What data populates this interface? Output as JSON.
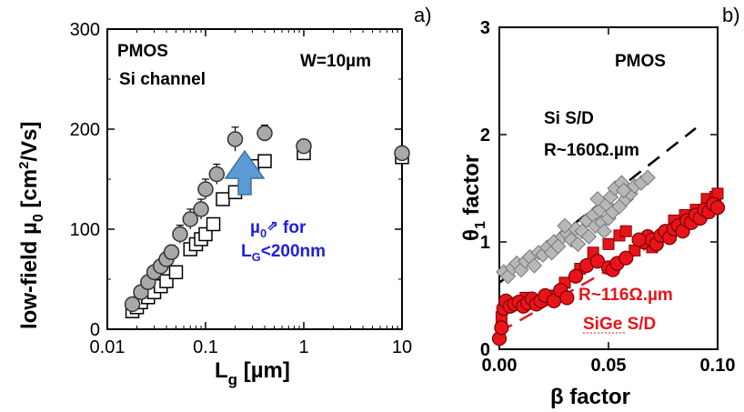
{
  "chart_data": [
    {
      "type": "scatter",
      "panel_label": "a)",
      "xlabel_main": "L",
      "xlabel_sub": "g",
      "xlabel_rest": " [µm]",
      "ylabel_main": "low-field µ",
      "ylabel_sub": "0",
      "ylabel_rest": " [cm",
      "ylabel_sup": "2",
      "ylabel_end": "/Vs]",
      "xscale": "log",
      "xlim": [
        0.01,
        10
      ],
      "ylim": [
        0,
        300
      ],
      "xticks": [
        {
          "v": 0.01,
          "label": "0.01"
        },
        {
          "v": 0.1,
          "label": "0.1"
        },
        {
          "v": 1,
          "label": "1"
        },
        {
          "v": 10,
          "label": "10"
        }
      ],
      "yticks": [
        {
          "v": 0,
          "label": "0"
        },
        {
          "v": 100,
          "label": "100"
        },
        {
          "v": 200,
          "label": "200"
        },
        {
          "v": 300,
          "label": "300"
        }
      ],
      "annotations": {
        "title": "PMOS",
        "subtitle": "Si channel",
        "width": "W=10µm",
        "blue_line1_main": "µ",
        "blue_line1_sub": "0",
        "blue_line1_rest": " for",
        "blue_line2_main": "L",
        "blue_line2_sub": "G",
        "blue_line2_rest": "<200nm"
      },
      "series": [
        {
          "marker": "circle-gray-errorbar",
          "points": [
            {
              "x": 0.018,
              "y": 25,
              "e": 5
            },
            {
              "x": 0.022,
              "y": 37,
              "e": 5
            },
            {
              "x": 0.026,
              "y": 47,
              "e": 6
            },
            {
              "x": 0.03,
              "y": 57,
              "e": 6
            },
            {
              "x": 0.035,
              "y": 63,
              "e": 6
            },
            {
              "x": 0.04,
              "y": 70,
              "e": 7
            },
            {
              "x": 0.045,
              "y": 77,
              "e": 7
            },
            {
              "x": 0.055,
              "y": 95,
              "e": 9
            },
            {
              "x": 0.07,
              "y": 110,
              "e": 10
            },
            {
              "x": 0.09,
              "y": 120,
              "e": 10
            },
            {
              "x": 0.1,
              "y": 140,
              "e": 10
            },
            {
              "x": 0.13,
              "y": 155,
              "e": 10
            },
            {
              "x": 0.2,
              "y": 190,
              "e": 12
            },
            {
              "x": 0.4,
              "y": 196,
              "e": 8
            },
            {
              "x": 1,
              "y": 183,
              "e": 6
            },
            {
              "x": 10,
              "y": 176,
              "e": 6
            }
          ]
        },
        {
          "marker": "square-open",
          "points": [
            {
              "x": 0.018,
              "y": 18
            },
            {
              "x": 0.02,
              "y": 22
            },
            {
              "x": 0.022,
              "y": 27
            },
            {
              "x": 0.026,
              "y": 32
            },
            {
              "x": 0.03,
              "y": 37
            },
            {
              "x": 0.035,
              "y": 43
            },
            {
              "x": 0.04,
              "y": 48
            },
            {
              "x": 0.05,
              "y": 57
            },
            {
              "x": 0.07,
              "y": 80
            },
            {
              "x": 0.08,
              "y": 85
            },
            {
              "x": 0.09,
              "y": 90
            },
            {
              "x": 0.1,
              "y": 95
            },
            {
              "x": 0.12,
              "y": 105
            },
            {
              "x": 0.15,
              "y": 130
            },
            {
              "x": 0.2,
              "y": 137
            },
            {
              "x": 0.3,
              "y": 163
            },
            {
              "x": 0.4,
              "y": 168
            },
            {
              "x": 1,
              "y": 176
            },
            {
              "x": 10,
              "y": 172
            }
          ]
        }
      ],
      "colors": {
        "circle_fill": "#a9a9a9",
        "arrow": "#5b9bd5",
        "blue_text": "#1f1fe0"
      }
    },
    {
      "type": "scatter",
      "panel_label": "b)",
      "xlabel_main": "β factor",
      "ylabel_main": "θ",
      "ylabel_sub": "1",
      "ylabel_rest": " factor",
      "xlim": [
        0,
        0.1
      ],
      "ylim": [
        0,
        3
      ],
      "xticks": [
        {
          "v": 0,
          "label": "0.00"
        },
        {
          "v": 0.05,
          "label": "0.05"
        },
        {
          "v": 0.1,
          "label": "0.10"
        }
      ],
      "yticks": [
        {
          "v": 0,
          "label": "0"
        },
        {
          "v": 1,
          "label": "1"
        },
        {
          "v": 2,
          "label": "2"
        },
        {
          "v": 3,
          "label": "3"
        }
      ],
      "annotations": {
        "title": "PMOS",
        "si_line1": "Si S/D",
        "si_line2": "R~160Ω.µm",
        "sige_line1": "R~116Ω.µm",
        "sige_line2": "SiGe S/D"
      },
      "fit_lines": [
        {
          "name_ref": "si",
          "slope": 16.0,
          "intercept": 0.62,
          "x_from": 0.0,
          "x_to": 0.09
        },
        {
          "name_ref": "sige",
          "slope": 11.6,
          "intercept": 0.16,
          "x_from": 0.0,
          "x_to": 0.1
        }
      ],
      "series": [
        {
          "marker": "diamond-gray",
          "points": [
            [
              0.002,
              0.72
            ],
            [
              0.004,
              0.68
            ],
            [
              0.006,
              0.76
            ],
            [
              0.008,
              0.8
            ],
            [
              0.01,
              0.74
            ],
            [
              0.012,
              0.82
            ],
            [
              0.014,
              0.86
            ],
            [
              0.016,
              0.78
            ],
            [
              0.018,
              0.9
            ],
            [
              0.02,
              0.88
            ],
            [
              0.022,
              0.95
            ],
            [
              0.024,
              0.9
            ],
            [
              0.025,
              1.0
            ],
            [
              0.027,
              0.96
            ],
            [
              0.029,
              1.05
            ],
            [
              0.031,
              1.08
            ],
            [
              0.033,
              1.02
            ],
            [
              0.035,
              1.12
            ],
            [
              0.036,
              0.98
            ],
            [
              0.038,
              1.1
            ],
            [
              0.04,
              1.2
            ],
            [
              0.041,
              1.05
            ],
            [
              0.043,
              1.25
            ],
            [
              0.044,
              1.15
            ],
            [
              0.046,
              1.3
            ],
            [
              0.047,
              1.18
            ],
            [
              0.049,
              1.35
            ],
            [
              0.05,
              1.22
            ],
            [
              0.051,
              1.42
            ],
            [
              0.052,
              1.28
            ],
            [
              0.053,
              1.5
            ],
            [
              0.055,
              1.33
            ],
            [
              0.056,
              1.55
            ],
            [
              0.058,
              1.4
            ],
            [
              0.06,
              1.45
            ],
            [
              0.062,
              1.52
            ],
            [
              0.065,
              1.55
            ],
            [
              0.068,
              1.6
            ],
            [
              0.03,
              1.15
            ],
            [
              0.045,
              1.4
            ],
            [
              0.057,
              1.48
            ],
            [
              0.048,
              1.1
            ]
          ]
        },
        {
          "marker": "circle-red",
          "points": [
            [
              0.0,
              0.1
            ],
            [
              0.001,
              0.2
            ],
            [
              0.002,
              0.38
            ],
            [
              0.003,
              0.45
            ],
            [
              0.005,
              0.4
            ],
            [
              0.007,
              0.42
            ],
            [
              0.009,
              0.44
            ],
            [
              0.011,
              0.4
            ],
            [
              0.013,
              0.43
            ],
            [
              0.015,
              0.47
            ],
            [
              0.017,
              0.42
            ],
            [
              0.019,
              0.45
            ],
            [
              0.021,
              0.5
            ],
            [
              0.025,
              0.45
            ],
            [
              0.028,
              0.55
            ],
            [
              0.031,
              0.48
            ],
            [
              0.035,
              0.68
            ],
            [
              0.04,
              0.78
            ],
            [
              0.045,
              0.82
            ],
            [
              0.05,
              0.76
            ],
            [
              0.052,
              0.74
            ],
            [
              0.054,
              0.8
            ],
            [
              0.066,
              1.0
            ],
            [
              0.068,
              1.05
            ],
            [
              0.07,
              1.02
            ],
            [
              0.072,
              0.98
            ],
            [
              0.074,
              1.06
            ],
            [
              0.076,
              1.1
            ],
            [
              0.078,
              1.04
            ],
            [
              0.08,
              1.12
            ],
            [
              0.082,
              1.15
            ],
            [
              0.084,
              1.1
            ],
            [
              0.086,
              1.2
            ],
            [
              0.088,
              1.18
            ],
            [
              0.09,
              1.25
            ],
            [
              0.092,
              1.22
            ],
            [
              0.094,
              1.3
            ],
            [
              0.096,
              1.28
            ],
            [
              0.098,
              1.35
            ],
            [
              0.1,
              1.32
            ],
            [
              0.058,
              0.85
            ],
            [
              0.064,
              1.02
            ]
          ]
        },
        {
          "marker": "square-red",
          "points": [
            [
              0.001,
              0.3
            ],
            [
              0.004,
              0.42
            ],
            [
              0.012,
              0.48
            ],
            [
              0.022,
              0.5
            ],
            [
              0.03,
              0.62
            ],
            [
              0.037,
              0.75
            ],
            [
              0.043,
              0.9
            ],
            [
              0.05,
              0.98
            ],
            [
              0.055,
              1.06
            ],
            [
              0.058,
              1.1
            ],
            [
              0.062,
              0.92
            ],
            [
              0.07,
              0.95
            ],
            [
              0.08,
              1.2
            ],
            [
              0.085,
              1.25
            ],
            [
              0.09,
              1.3
            ],
            [
              0.095,
              1.4
            ],
            [
              0.099,
              1.42
            ],
            [
              0.1,
              1.45
            ]
          ]
        }
      ],
      "colors": {
        "diamond_fill": "#b8b8b8",
        "red": "#e8141c",
        "sige_fit": "#e8141c",
        "si_fit": "#000000"
      }
    }
  ]
}
